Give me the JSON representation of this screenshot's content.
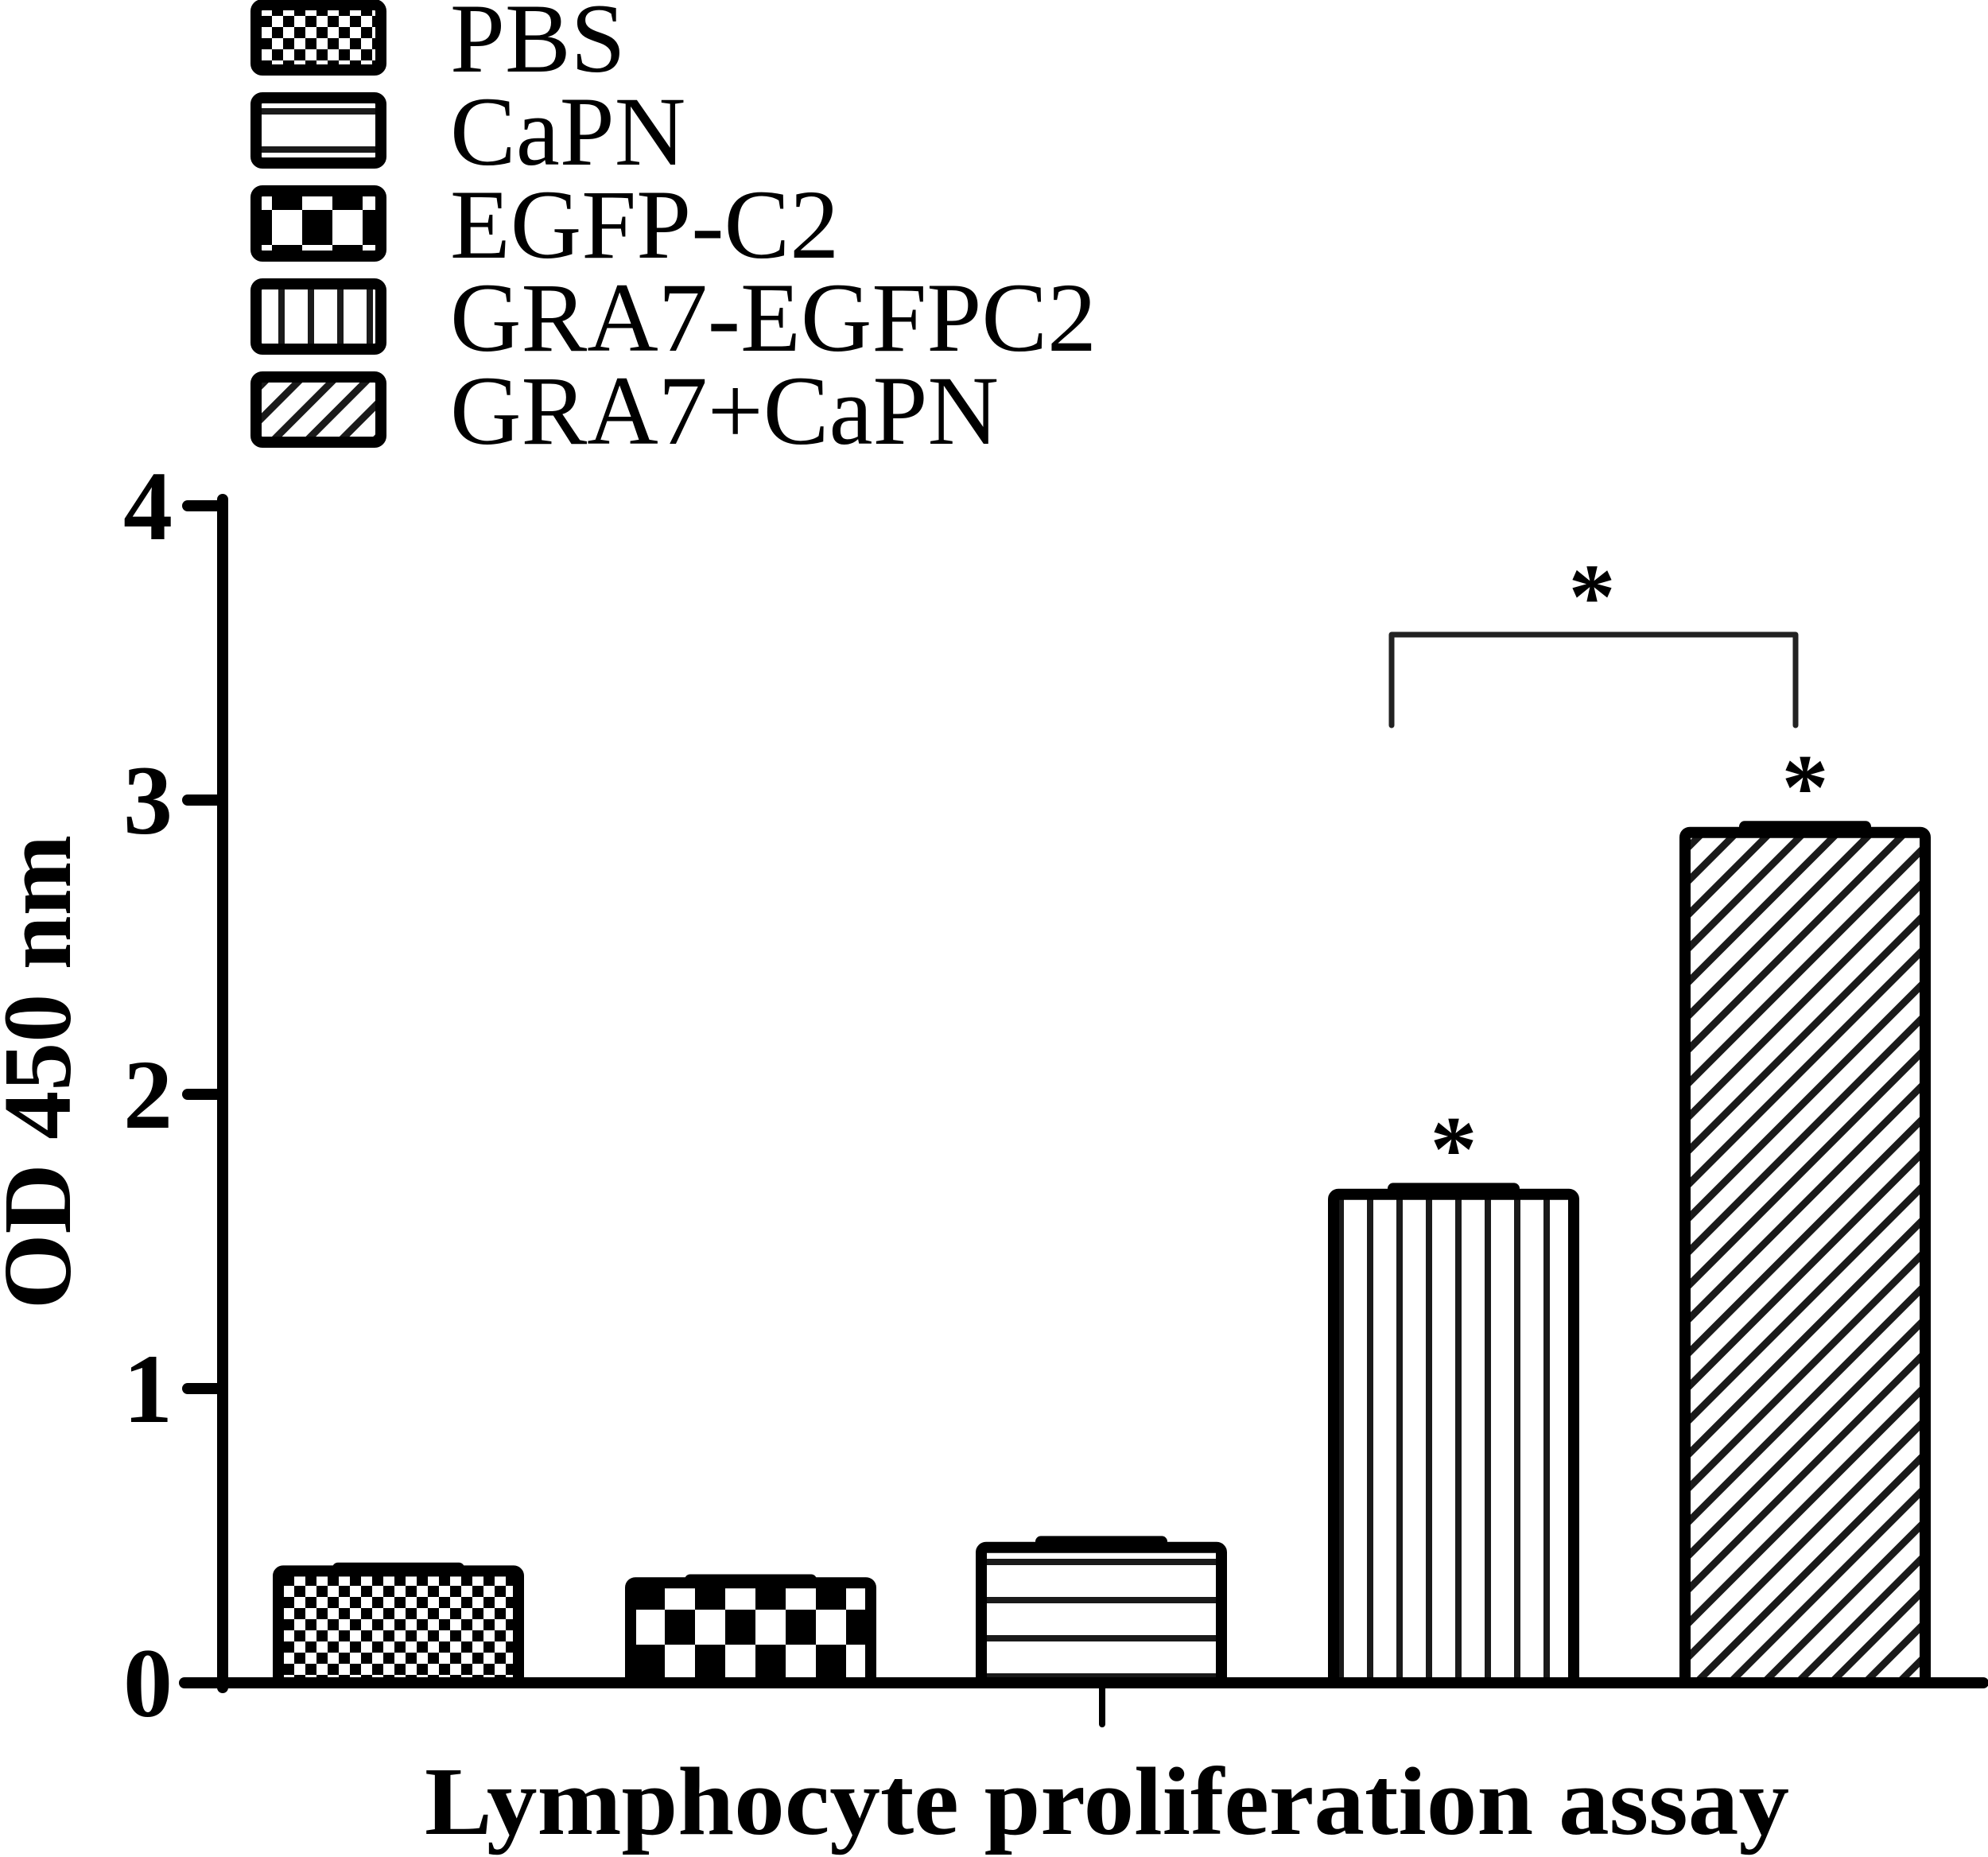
{
  "chart_data": {
    "type": "bar",
    "title": "",
    "xlabel": "Lymphocyte proliferation assay",
    "ylabel": "OD 450 nm",
    "ylim": [
      0,
      4
    ],
    "yticks": [
      "0",
      "1",
      "2",
      "3",
      "4"
    ],
    "grid": false,
    "legend_position": "top-left, above plot",
    "categories": [
      "PBS",
      "EGFP-C2",
      "CaPN",
      "GRA7-EGFPC2",
      "GRA7+CaPN"
    ],
    "values": [
      0.38,
      0.34,
      0.46,
      1.66,
      2.89
    ],
    "error": [
      0.01,
      0.01,
      0.02,
      0.02,
      0.02
    ],
    "patterns": [
      "fine-checker",
      "coarse-checker",
      "horizontal-lines",
      "vertical-lines",
      "diagonal-hatch"
    ],
    "significance": [
      {
        "bar": "GRA7-EGFPC2",
        "label": "*"
      },
      {
        "bar": "GRA7+CaPN",
        "label": "*"
      },
      {
        "bracket": [
          "GRA7-EGFPC2",
          "GRA7+CaPN"
        ],
        "label": "*"
      }
    ],
    "legend": [
      {
        "label": "PBS",
        "pattern": "fine-checker"
      },
      {
        "label": "CaPN",
        "pattern": "horizontal-lines"
      },
      {
        "label": "EGFP-C2",
        "pattern": "coarse-checker"
      },
      {
        "label": "GRA7-EGFPC2",
        "pattern": "vertical-lines"
      },
      {
        "label": "GRA7+CaPN",
        "pattern": "diagonal-hatch"
      }
    ]
  },
  "colors": {
    "ink": "#000000",
    "background": "#ffffff"
  }
}
